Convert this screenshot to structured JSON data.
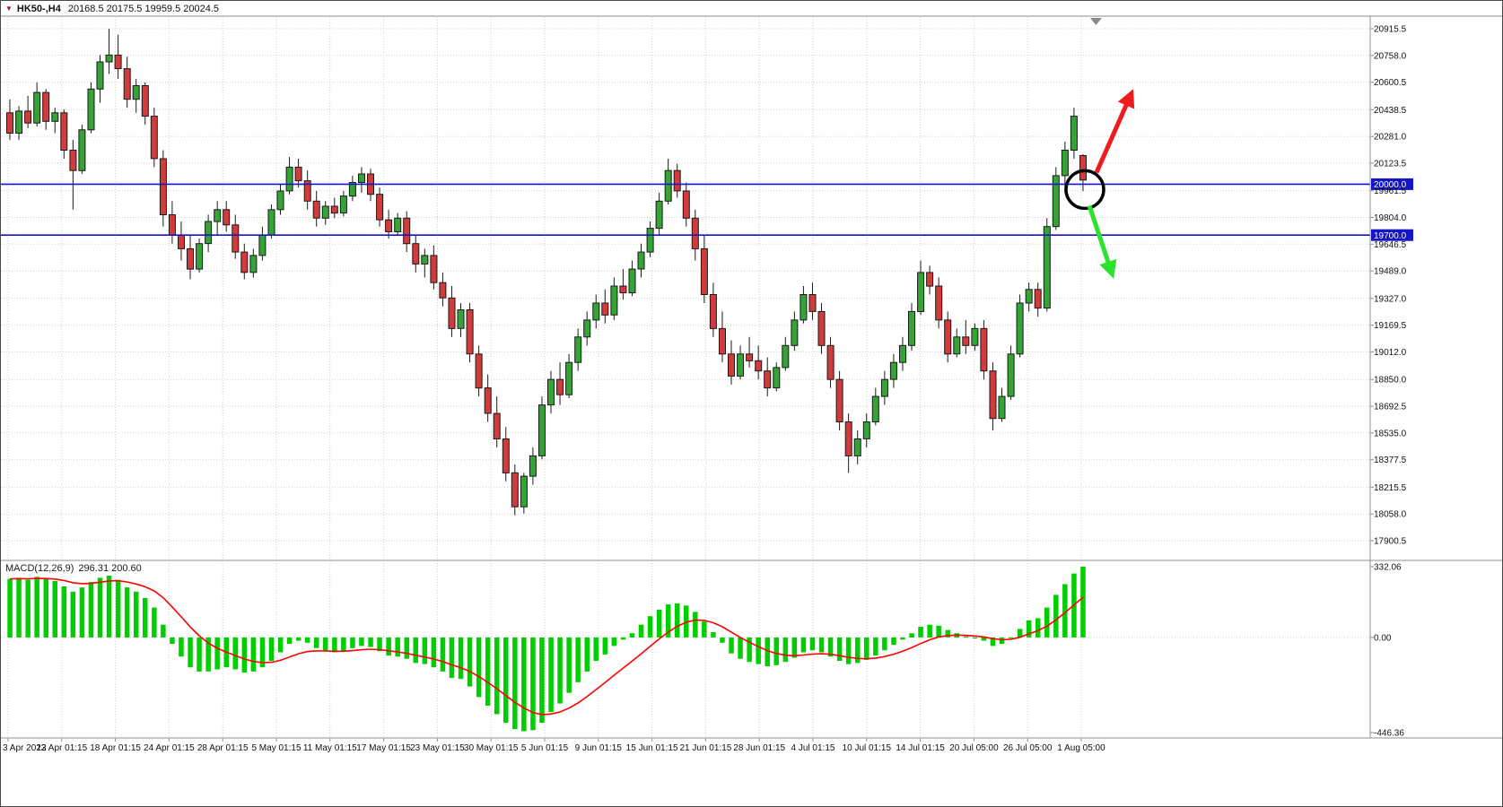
{
  "header": {
    "symbol": "HK50-,H4",
    "ohlc": "20168.5 20175.5 19959.5 20024.5",
    "marker_icon_glyph": "▼"
  },
  "colors": {
    "up_candle": "#35a335",
    "down_candle": "#d23b3b",
    "candle_outline": "#1a1a1a",
    "hline_blue": "#1414c8",
    "macd_histogram": "#00ce00",
    "macd_signal": "#ff0000",
    "grid": "#cfcfcf",
    "separator": "#8f8f8f",
    "annotation_circle": "#000000",
    "arrow_up": "#ee1c1c",
    "arrow_down": "#2de22d",
    "axis_text": "#111111"
  },
  "chart_data": {
    "type": "candlestick",
    "title": "HK50-,H4",
    "legend_position": "none",
    "grid": true,
    "main": {
      "price_axis_ticks": [
        "20915.5",
        "20758.0",
        "20600.5",
        "20438.5",
        "20281.0",
        "20123.5",
        "19961.5",
        "19804.0",
        "19646.5",
        "19489.0",
        "19327.0",
        "19169.5",
        "19012.0",
        "18850.0",
        "18692.5",
        "18535.0",
        "18377.5",
        "18215.5",
        "18058.0",
        "17900.5"
      ],
      "hlines": [
        {
          "price": 20000.0,
          "label": "20000.0"
        },
        {
          "price": 19700.0,
          "label": "19700.0"
        }
      ],
      "candles": [
        [
          20420,
          20500,
          20260,
          20300
        ],
        [
          20300,
          20460,
          20260,
          20430
        ],
        [
          20430,
          20520,
          20330,
          20360
        ],
        [
          20360,
          20600,
          20340,
          20540
        ],
        [
          20540,
          20560,
          20320,
          20370
        ],
        [
          20370,
          20450,
          20300,
          20420
        ],
        [
          20420,
          20440,
          20150,
          20200
        ],
        [
          20200,
          20260,
          19850,
          20080
        ],
        [
          20080,
          20350,
          20060,
          20320
        ],
        [
          20320,
          20600,
          20300,
          20560
        ],
        [
          20560,
          20760,
          20480,
          20720
        ],
        [
          20720,
          20915,
          20650,
          20760
        ],
        [
          20760,
          20880,
          20620,
          20680
        ],
        [
          20680,
          20750,
          20450,
          20500
        ],
        [
          20500,
          20620,
          20420,
          20580
        ],
        [
          20580,
          20600,
          20350,
          20400
        ],
        [
          20400,
          20450,
          20100,
          20150
        ],
        [
          20150,
          20200,
          19750,
          19820
        ],
        [
          19820,
          19900,
          19650,
          19700
        ],
        [
          19700,
          19780,
          19550,
          19620
        ],
        [
          19620,
          19700,
          19440,
          19500
        ],
        [
          19500,
          19680,
          19480,
          19650
        ],
        [
          19650,
          19820,
          19600,
          19780
        ],
        [
          19780,
          19900,
          19700,
          19850
        ],
        [
          19850,
          19900,
          19720,
          19760
        ],
        [
          19760,
          19820,
          19560,
          19600
        ],
        [
          19600,
          19650,
          19440,
          19480
        ],
        [
          19480,
          19620,
          19450,
          19580
        ],
        [
          19580,
          19750,
          19550,
          19700
        ],
        [
          19700,
          19880,
          19680,
          19850
        ],
        [
          19850,
          20000,
          19820,
          19960
        ],
        [
          19960,
          20160,
          19940,
          20100
        ],
        [
          20100,
          20150,
          19980,
          20020
        ],
        [
          20020,
          20080,
          19850,
          19900
        ],
        [
          19900,
          19960,
          19750,
          19800
        ],
        [
          19800,
          19900,
          19760,
          19870
        ],
        [
          19870,
          19920,
          19800,
          19830
        ],
        [
          19830,
          19960,
          19810,
          19930
        ],
        [
          19930,
          20050,
          19900,
          20010
        ],
        [
          20010,
          20100,
          19950,
          20060
        ],
        [
          20060,
          20090,
          19900,
          19940
        ],
        [
          19940,
          19980,
          19750,
          19790
        ],
        [
          19790,
          19850,
          19680,
          19720
        ],
        [
          19720,
          19830,
          19700,
          19800
        ],
        [
          19800,
          19840,
          19600,
          19650
        ],
        [
          19650,
          19700,
          19480,
          19530
        ],
        [
          19530,
          19620,
          19450,
          19580
        ],
        [
          19580,
          19640,
          19380,
          19420
        ],
        [
          19420,
          19480,
          19280,
          19330
        ],
        [
          19330,
          19400,
          19100,
          19150
        ],
        [
          19150,
          19300,
          19100,
          19260
        ],
        [
          19260,
          19300,
          18950,
          19000
        ],
        [
          19000,
          19050,
          18750,
          18800
        ],
        [
          18800,
          18880,
          18600,
          18650
        ],
        [
          18650,
          18750,
          18450,
          18500
        ],
        [
          18500,
          18570,
          18250,
          18300
        ],
        [
          18300,
          18350,
          18050,
          18100
        ],
        [
          18100,
          18300,
          18060,
          18280
        ],
        [
          18280,
          18450,
          18230,
          18400
        ],
        [
          18400,
          18750,
          18380,
          18700
        ],
        [
          18700,
          18900,
          18650,
          18850
        ],
        [
          18850,
          18950,
          18700,
          18760
        ],
        [
          18760,
          19000,
          18740,
          18950
        ],
        [
          18950,
          19150,
          18900,
          19100
        ],
        [
          19100,
          19250,
          19050,
          19200
        ],
        [
          19200,
          19350,
          19150,
          19300
        ],
        [
          19300,
          19380,
          19180,
          19230
        ],
        [
          19230,
          19450,
          19200,
          19400
        ],
        [
          19400,
          19500,
          19320,
          19360
        ],
        [
          19360,
          19550,
          19340,
          19500
        ],
        [
          19500,
          19650,
          19450,
          19600
        ],
        [
          19600,
          19780,
          19570,
          19740
        ],
        [
          19740,
          19950,
          19700,
          19900
        ],
        [
          19900,
          20150,
          19880,
          20080
        ],
        [
          20080,
          20120,
          19920,
          19960
        ],
        [
          19960,
          20010,
          19750,
          19800
        ],
        [
          19800,
          19850,
          19550,
          19620
        ],
        [
          19620,
          19700,
          19300,
          19350
        ],
        [
          19350,
          19420,
          19100,
          19150
        ],
        [
          19150,
          19250,
          18950,
          19000
        ],
        [
          19000,
          19080,
          18820,
          18870
        ],
        [
          18870,
          19050,
          18850,
          19000
        ],
        [
          19000,
          19100,
          18920,
          18960
        ],
        [
          18960,
          19050,
          18850,
          18900
        ],
        [
          18900,
          18980,
          18750,
          18800
        ],
        [
          18800,
          18950,
          18780,
          18920
        ],
        [
          18920,
          19100,
          18900,
          19050
        ],
        [
          19050,
          19250,
          19020,
          19200
        ],
        [
          19200,
          19400,
          19180,
          19350
        ],
        [
          19350,
          19420,
          19200,
          19250
        ],
        [
          19250,
          19300,
          19000,
          19050
        ],
        [
          19050,
          19100,
          18800,
          18850
        ],
        [
          18850,
          18900,
          18550,
          18600
        ],
        [
          18600,
          18650,
          18300,
          18400
        ],
        [
          18400,
          18550,
          18350,
          18500
        ],
        [
          18500,
          18650,
          18450,
          18600
        ],
        [
          18600,
          18800,
          18580,
          18750
        ],
        [
          18750,
          18900,
          18700,
          18850
        ],
        [
          18850,
          19000,
          18800,
          18950
        ],
        [
          18950,
          19100,
          18900,
          19050
        ],
        [
          19050,
          19300,
          19020,
          19250
        ],
        [
          19250,
          19550,
          19230,
          19480
        ],
        [
          19480,
          19520,
          19350,
          19400
        ],
        [
          19400,
          19450,
          19150,
          19200
        ],
        [
          19200,
          19250,
          18950,
          19000
        ],
        [
          19000,
          19150,
          18980,
          19100
        ],
        [
          19100,
          19200,
          19000,
          19050
        ],
        [
          19050,
          19180,
          19020,
          19150
        ],
        [
          19150,
          19200,
          18850,
          18900
        ],
        [
          18900,
          18950,
          18550,
          18620
        ],
        [
          18620,
          18800,
          18600,
          18750
        ],
        [
          18750,
          19050,
          18730,
          19000
        ],
        [
          19000,
          19350,
          18980,
          19300
        ],
        [
          19300,
          19420,
          19250,
          19380
        ],
        [
          19380,
          19420,
          19220,
          19270
        ],
        [
          19270,
          19800,
          19250,
          19750
        ],
        [
          19750,
          20100,
          19730,
          20050
        ],
        [
          20050,
          20250,
          19950,
          20200
        ],
        [
          20200,
          20450,
          20150,
          20400
        ],
        [
          20168.5,
          20175.5,
          19959.5,
          20024.5
        ]
      ]
    },
    "macd": {
      "label": "MACD(12,26,9)",
      "readout": "296.31 200.60",
      "axis_ticks": [
        332.06,
        0,
        -446.36
      ],
      "axis_tick_labels": [
        "332.06",
        "0.00",
        "-446.36"
      ],
      "histogram": [
        275,
        280,
        270,
        285,
        275,
        265,
        240,
        215,
        235,
        260,
        280,
        290,
        270,
        235,
        215,
        185,
        140,
        60,
        -30,
        -90,
        -140,
        -160,
        -160,
        -150,
        -140,
        -150,
        -165,
        -160,
        -140,
        -110,
        -70,
        -30,
        -15,
        -25,
        -50,
        -65,
        -70,
        -65,
        -50,
        -40,
        -45,
        -65,
        -85,
        -90,
        -100,
        -120,
        -125,
        -140,
        -160,
        -190,
        -195,
        -230,
        -280,
        -320,
        -360,
        -400,
        -430,
        -440,
        -435,
        -400,
        -350,
        -310,
        -260,
        -210,
        -160,
        -110,
        -80,
        -40,
        -10,
        20,
        60,
        100,
        130,
        155,
        160,
        150,
        120,
        75,
        25,
        -25,
        -75,
        -100,
        -115,
        -125,
        -135,
        -130,
        -115,
        -95,
        -70,
        -60,
        -70,
        -90,
        -110,
        -125,
        -120,
        -105,
        -85,
        -60,
        -35,
        -10,
        20,
        50,
        60,
        55,
        35,
        20,
        5,
        -5,
        -15,
        -40,
        -30,
        0,
        40,
        80,
        90,
        140,
        200,
        250,
        300,
        332
      ]
    },
    "time_axis": {
      "labels": [
        "3 Apr 2023",
        "12 Apr 01:15",
        "18 Apr 01:15",
        "24 Apr 01:15",
        "28 Apr 01:15",
        "5 May 01:15",
        "11 May 01:15",
        "17 May 01:15",
        "23 May 01:15",
        "30 May 01:15",
        "5 Jun 01:15",
        "9 Jun 01:15",
        "15 Jun 01:15",
        "21 Jun 01:15",
        "28 Jun 01:15",
        "4 Jul 01:15",
        "10 Jul 01:15",
        "14 Jul 01:15",
        "20 Jul 05:00",
        "26 Jul 05:00",
        "1 Aug 05:00"
      ]
    }
  },
  "annotations": [
    {
      "type": "circle",
      "anchor_price": 20000.0
    },
    {
      "type": "arrow",
      "direction": "up-right",
      "color_key": "arrow_up"
    },
    {
      "type": "arrow",
      "direction": "down-right",
      "color_key": "arrow_down"
    }
  ]
}
